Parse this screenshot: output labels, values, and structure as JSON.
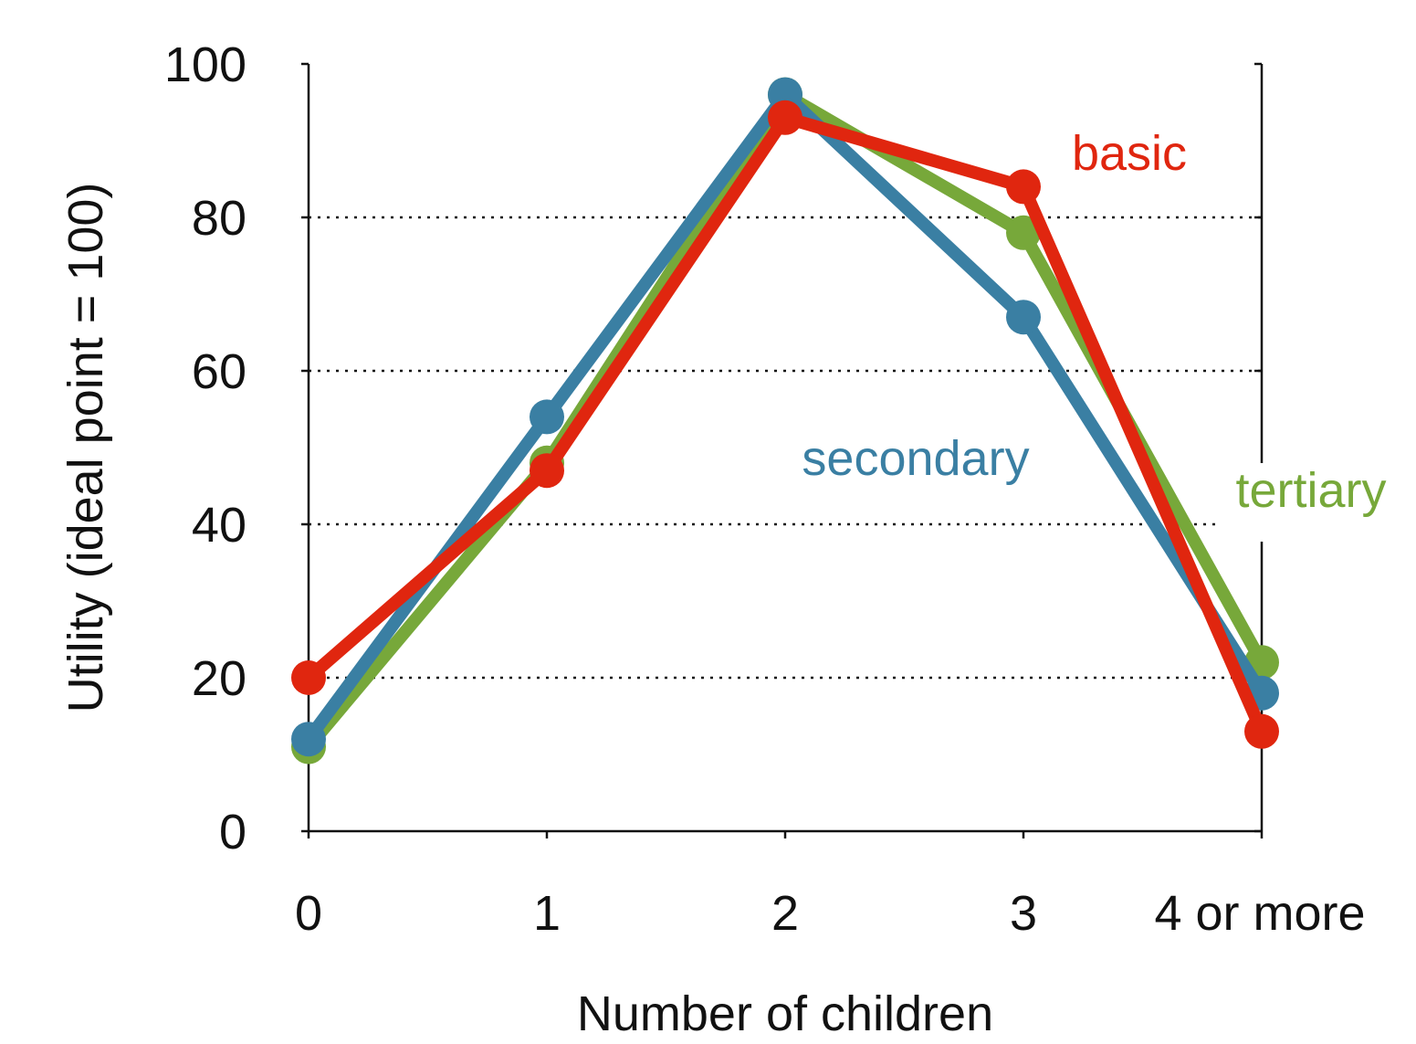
{
  "chart_data": {
    "type": "line",
    "title": "",
    "xlabel": "Number of children",
    "ylabel": "Utility (ideal point = 100)",
    "categories": [
      "0",
      "1",
      "2",
      "3",
      "4 or more"
    ],
    "ylim": [
      0,
      100
    ],
    "yticks": [
      0,
      20,
      40,
      60,
      80,
      100
    ],
    "grid": "horizontal dotted at 20, 40, 60, 80",
    "series": [
      {
        "name": "tertiary",
        "color": "#77a83a",
        "values": [
          11,
          48,
          96,
          78,
          22
        ]
      },
      {
        "name": "secondary",
        "color": "#3a7fa3",
        "values": [
          12,
          54,
          96,
          67,
          18
        ]
      },
      {
        "name": "basic",
        "color": "#e0260f",
        "values": [
          20,
          47,
          93,
          84,
          13
        ]
      }
    ],
    "legend": "direct labels on plot"
  }
}
